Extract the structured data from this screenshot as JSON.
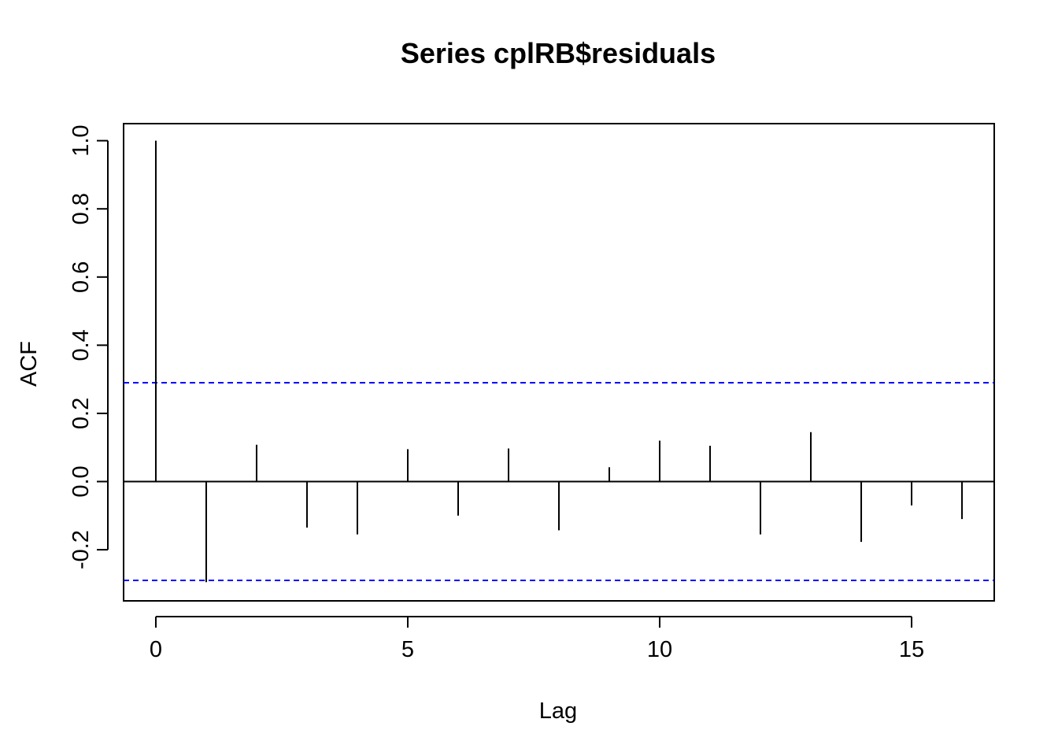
{
  "chart_data": {
    "type": "bar",
    "title": "Series  cplRB$residuals",
    "xlabel": "Lag",
    "ylabel": "ACF",
    "xlim": [
      -0.64,
      16.64
    ],
    "ylim": [
      -0.35,
      1.05
    ],
    "x_ticks": [
      0,
      5,
      10,
      15
    ],
    "x_tick_labels": [
      "0",
      "5",
      "10",
      "15"
    ],
    "y_ticks": [
      -0.2,
      0.0,
      0.2,
      0.4,
      0.6,
      0.8,
      1.0
    ],
    "y_tick_labels": [
      "-0.2",
      "0.0",
      "0.2",
      "0.4",
      "0.6",
      "0.8",
      "1.0"
    ],
    "lags": [
      0,
      1,
      2,
      3,
      4,
      5,
      6,
      7,
      8,
      9,
      10,
      11,
      12,
      13,
      14,
      15,
      16
    ],
    "acf": [
      1.0,
      -0.295,
      0.108,
      -0.135,
      -0.155,
      0.095,
      -0.1,
      0.097,
      -0.143,
      0.042,
      0.12,
      0.105,
      -0.155,
      0.145,
      -0.177,
      -0.07,
      -0.11
    ],
    "confidence_bound": 0.29,
    "colors": {
      "spike": "#000000",
      "zero_line": "#000000",
      "ci_line": "#0000FF"
    }
  }
}
